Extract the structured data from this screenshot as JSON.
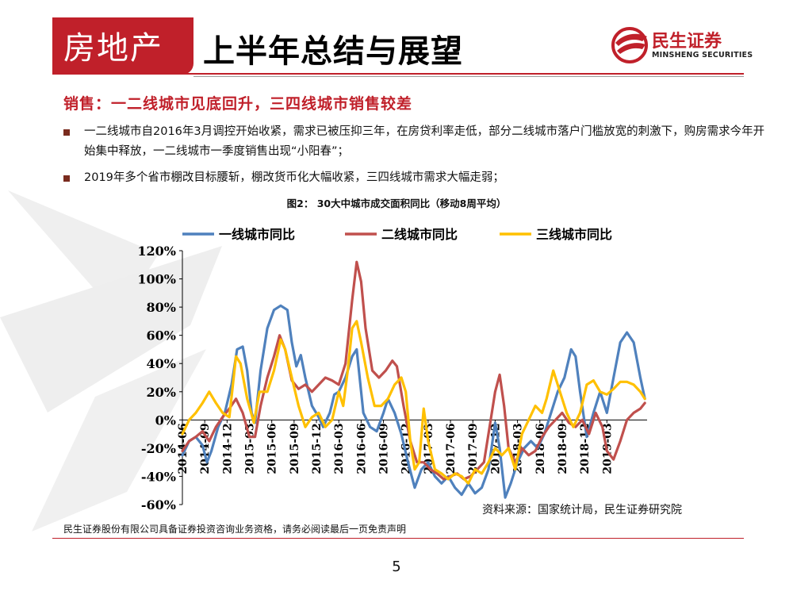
{
  "header": {
    "category": "房地产",
    "subtitle": "上半年总结与展望",
    "logo_cn": "民生证券",
    "logo_en": "MINSHENG SECURITIES"
  },
  "section_title": "销售：一二线城市见底回升，三四线城市销售较差",
  "bullets": [
    "一二线城市自2016年3月调控开始收紧，需求已被压抑三年，在房贷利率走低，部分二线城市落户门槛放宽的刺激下，购房需求今年开始集中释放，一二线城市一季度销售出现“小阳春”；",
    "2019年多个省市棚改目标腰斩，棚改货币化大幅收紧，三四线城市需求大幅走弱；"
  ],
  "figure_title": "图2：  30大中城市成交面积同比（移动8周平均）",
  "source": "资料来源：国家统计局，民生证券研究院",
  "footer": "民生证券股份有限公司具备证券投资咨询业务资格，请务必阅读最后一页免责声明",
  "page_number": "5",
  "colors": {
    "brand_red": "#c0202a",
    "tier1": "#4f81bd",
    "tier2": "#c0504d",
    "tier3": "#ffc000"
  },
  "chart_data": {
    "type": "line",
    "title": "30大中城市成交面积同比（移动8周平均）",
    "xlabel": "",
    "ylabel": "",
    "ylim": [
      -0.6,
      1.2
    ],
    "yticks": [
      "120%",
      "100%",
      "80%",
      "60%",
      "40%",
      "20%",
      "0%",
      "-20%",
      "-40%",
      "-60%"
    ],
    "ytick_values": [
      1.2,
      1.0,
      0.8,
      0.6,
      0.4,
      0.2,
      0.0,
      -0.2,
      -0.4,
      -0.6
    ],
    "legend_position": "top",
    "xticks": [
      "2014-06",
      "2014-09",
      "2014-12",
      "2015-03",
      "2015-06",
      "2015-09",
      "2015-12",
      "2016-03",
      "2016-06",
      "2016-09",
      "2016-12",
      "2017-03",
      "2017-06",
      "2017-09",
      "2017-12",
      "2018-03",
      "2018-06",
      "2018-09",
      "2018-12",
      "2019-03"
    ],
    "x_range": [
      0,
      20.8
    ],
    "series": [
      {
        "name": "一线城市同比",
        "color": "#4f81bd",
        "points": [
          [
            0,
            -0.25
          ],
          [
            0.3,
            -0.15
          ],
          [
            0.6,
            -0.12
          ],
          [
            0.9,
            -0.18
          ],
          [
            1.1,
            -0.3
          ],
          [
            1.3,
            -0.22
          ],
          [
            1.6,
            -0.05
          ],
          [
            1.9,
            0.05
          ],
          [
            2.2,
            0.25
          ],
          [
            2.45,
            0.5
          ],
          [
            2.7,
            0.52
          ],
          [
            2.9,
            0.35
          ],
          [
            3.1,
            0.05
          ],
          [
            3.25,
            -0.02
          ],
          [
            3.5,
            0.35
          ],
          [
            3.8,
            0.65
          ],
          [
            4.1,
            0.78
          ],
          [
            4.4,
            0.81
          ],
          [
            4.7,
            0.78
          ],
          [
            4.9,
            0.55
          ],
          [
            5.1,
            0.38
          ],
          [
            5.3,
            0.46
          ],
          [
            5.5,
            0.3
          ],
          [
            5.8,
            0.1
          ],
          [
            6.1,
            0.02
          ],
          [
            6.3,
            -0.05
          ],
          [
            6.6,
            0.05
          ],
          [
            6.8,
            0.18
          ],
          [
            7.0,
            0.2
          ],
          [
            7.3,
            0.3
          ],
          [
            7.6,
            0.45
          ],
          [
            7.8,
            0.5
          ],
          [
            8.1,
            0.05
          ],
          [
            8.4,
            -0.05
          ],
          [
            8.7,
            -0.08
          ],
          [
            9.0,
            0.05
          ],
          [
            9.2,
            0.15
          ],
          [
            9.5,
            0.05
          ],
          [
            9.8,
            -0.1
          ],
          [
            10.1,
            -0.3
          ],
          [
            10.4,
            -0.48
          ],
          [
            10.7,
            -0.35
          ],
          [
            11.0,
            -0.3
          ],
          [
            11.3,
            -0.4
          ],
          [
            11.6,
            -0.45
          ],
          [
            11.9,
            -0.4
          ],
          [
            12.2,
            -0.48
          ],
          [
            12.5,
            -0.53
          ],
          [
            12.8,
            -0.45
          ],
          [
            13.1,
            -0.52
          ],
          [
            13.4,
            -0.48
          ],
          [
            13.7,
            -0.35
          ],
          [
            14.0,
            -0.02
          ],
          [
            14.2,
            -0.2
          ],
          [
            14.45,
            -0.55
          ],
          [
            14.7,
            -0.45
          ],
          [
            15.0,
            -0.3
          ],
          [
            15.3,
            -0.2
          ],
          [
            15.6,
            -0.15
          ],
          [
            15.9,
            -0.2
          ],
          [
            16.2,
            -0.1
          ],
          [
            16.5,
            0.05
          ],
          [
            16.8,
            0.2
          ],
          [
            17.1,
            0.3
          ],
          [
            17.4,
            0.5
          ],
          [
            17.6,
            0.45
          ],
          [
            17.8,
            0.2
          ],
          [
            18.1,
            -0.12
          ],
          [
            18.4,
            0.05
          ],
          [
            18.7,
            0.2
          ],
          [
            19.0,
            0.05
          ],
          [
            19.3,
            0.3
          ],
          [
            19.6,
            0.55
          ],
          [
            19.9,
            0.62
          ],
          [
            20.2,
            0.55
          ],
          [
            20.5,
            0.3
          ],
          [
            20.7,
            0.15
          ]
        ]
      },
      {
        "name": "二线城市同比",
        "color": "#c0504d",
        "points": [
          [
            0,
            -0.22
          ],
          [
            0.3,
            -0.15
          ],
          [
            0.6,
            -0.12
          ],
          [
            0.9,
            -0.08
          ],
          [
            1.2,
            -0.15
          ],
          [
            1.5,
            -0.05
          ],
          [
            1.8,
            0.02
          ],
          [
            2.1,
            0.08
          ],
          [
            2.4,
            0.15
          ],
          [
            2.7,
            0.05
          ],
          [
            3.0,
            -0.12
          ],
          [
            3.25,
            -0.12
          ],
          [
            3.5,
            0.1
          ],
          [
            3.8,
            0.3
          ],
          [
            4.1,
            0.45
          ],
          [
            4.35,
            0.6
          ],
          [
            4.6,
            0.5
          ],
          [
            4.9,
            0.28
          ],
          [
            5.2,
            0.22
          ],
          [
            5.5,
            0.25
          ],
          [
            5.8,
            0.2
          ],
          [
            6.1,
            0.25
          ],
          [
            6.4,
            0.3
          ],
          [
            6.7,
            0.28
          ],
          [
            7.0,
            0.25
          ],
          [
            7.3,
            0.4
          ],
          [
            7.6,
            0.85
          ],
          [
            7.8,
            1.12
          ],
          [
            8.0,
            0.98
          ],
          [
            8.2,
            0.65
          ],
          [
            8.5,
            0.35
          ],
          [
            8.8,
            0.3
          ],
          [
            9.1,
            0.35
          ],
          [
            9.4,
            0.42
          ],
          [
            9.6,
            0.38
          ],
          [
            9.9,
            0.1
          ],
          [
            10.2,
            -0.15
          ],
          [
            10.5,
            -0.3
          ],
          [
            10.8,
            -0.3
          ],
          [
            11.1,
            -0.35
          ],
          [
            11.4,
            -0.38
          ],
          [
            11.7,
            -0.42
          ],
          [
            12.0,
            -0.4
          ],
          [
            12.3,
            -0.38
          ],
          [
            12.6,
            -0.42
          ],
          [
            12.9,
            -0.4
          ],
          [
            13.2,
            -0.35
          ],
          [
            13.5,
            -0.3
          ],
          [
            13.8,
            0.0
          ],
          [
            14.0,
            0.2
          ],
          [
            14.2,
            0.32
          ],
          [
            14.4,
            0.1
          ],
          [
            14.6,
            -0.2
          ],
          [
            14.9,
            -0.3
          ],
          [
            15.2,
            -0.2
          ],
          [
            15.5,
            -0.25
          ],
          [
            15.8,
            -0.22
          ],
          [
            16.1,
            -0.12
          ],
          [
            16.4,
            -0.05
          ],
          [
            16.7,
            0.0
          ],
          [
            17.0,
            0.05
          ],
          [
            17.3,
            -0.02
          ],
          [
            17.6,
            -0.05
          ],
          [
            17.9,
            0.0
          ],
          [
            18.2,
            -0.1
          ],
          [
            18.5,
            0.05
          ],
          [
            18.8,
            -0.05
          ],
          [
            19.0,
            -0.22
          ],
          [
            19.3,
            -0.28
          ],
          [
            19.6,
            -0.15
          ],
          [
            19.9,
            0.0
          ],
          [
            20.2,
            0.05
          ],
          [
            20.5,
            0.08
          ],
          [
            20.7,
            0.12
          ]
        ]
      },
      {
        "name": "三线城市同比",
        "color": "#ffc000",
        "points": [
          [
            0,
            -0.1
          ],
          [
            0.3,
            0.0
          ],
          [
            0.6,
            0.05
          ],
          [
            0.9,
            0.12
          ],
          [
            1.2,
            0.2
          ],
          [
            1.5,
            0.12
          ],
          [
            1.8,
            0.05
          ],
          [
            2.1,
            0.02
          ],
          [
            2.4,
            0.45
          ],
          [
            2.6,
            0.4
          ],
          [
            2.9,
            0.15
          ],
          [
            3.2,
            -0.02
          ],
          [
            3.45,
            0.2
          ],
          [
            3.8,
            0.2
          ],
          [
            4.1,
            0.35
          ],
          [
            4.4,
            0.57
          ],
          [
            4.6,
            0.5
          ],
          [
            4.9,
            0.3
          ],
          [
            5.2,
            0.1
          ],
          [
            5.5,
            -0.05
          ],
          [
            5.8,
            0.02
          ],
          [
            6.1,
            0.05
          ],
          [
            6.4,
            -0.05
          ],
          [
            6.7,
            0.0
          ],
          [
            7.0,
            0.2
          ],
          [
            7.2,
            0.1
          ],
          [
            7.4,
            0.35
          ],
          [
            7.6,
            0.65
          ],
          [
            7.8,
            0.7
          ],
          [
            8.0,
            0.55
          ],
          [
            8.3,
            0.3
          ],
          [
            8.6,
            0.1
          ],
          [
            8.9,
            0.1
          ],
          [
            9.2,
            0.15
          ],
          [
            9.5,
            0.25
          ],
          [
            9.8,
            0.3
          ],
          [
            10.0,
            0.2
          ],
          [
            10.2,
            -0.15
          ],
          [
            10.4,
            -0.35
          ],
          [
            10.6,
            -0.3
          ],
          [
            10.8,
            0.08
          ],
          [
            11.0,
            -0.15
          ],
          [
            11.3,
            -0.35
          ],
          [
            11.6,
            -0.38
          ],
          [
            11.9,
            -0.42
          ],
          [
            12.2,
            -0.38
          ],
          [
            12.5,
            -0.4
          ],
          [
            12.8,
            -0.45
          ],
          [
            13.1,
            -0.35
          ],
          [
            13.4,
            -0.38
          ],
          [
            13.7,
            -0.3
          ],
          [
            14.0,
            -0.2
          ],
          [
            14.3,
            -0.25
          ],
          [
            14.6,
            -0.2
          ],
          [
            14.9,
            -0.35
          ],
          [
            15.2,
            -0.1
          ],
          [
            15.5,
            0.0
          ],
          [
            15.8,
            0.1
          ],
          [
            16.1,
            0.05
          ],
          [
            16.3,
            0.15
          ],
          [
            16.6,
            0.35
          ],
          [
            16.9,
            0.2
          ],
          [
            17.2,
            0.05
          ],
          [
            17.5,
            -0.05
          ],
          [
            17.8,
            0.05
          ],
          [
            18.1,
            0.25
          ],
          [
            18.4,
            0.28
          ],
          [
            18.7,
            0.2
          ],
          [
            19.0,
            0.18
          ],
          [
            19.3,
            0.22
          ],
          [
            19.6,
            0.27
          ],
          [
            19.9,
            0.27
          ],
          [
            20.2,
            0.25
          ],
          [
            20.5,
            0.2
          ],
          [
            20.7,
            0.15
          ]
        ]
      }
    ]
  }
}
